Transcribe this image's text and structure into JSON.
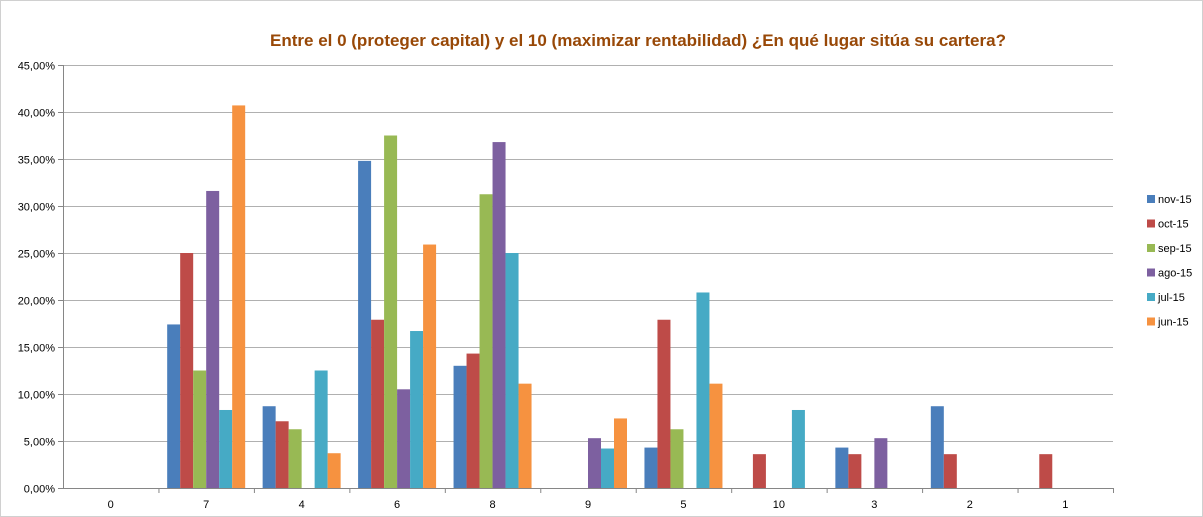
{
  "chart_data": {
    "type": "bar",
    "title": "Entre el 0 (proteger capital) y el 10 (maximizar rentabilidad)  ¿En qué lugar sitúa su cartera?",
    "xlabel": "",
    "ylabel": "",
    "ylim": [
      0,
      45
    ],
    "ytick_labels": [
      "0,00%",
      "5,00%",
      "10,00%",
      "15,00%",
      "20,00%",
      "25,00%",
      "30,00%",
      "35,00%",
      "40,00%",
      "45,00%"
    ],
    "grid": true,
    "legend_position": "right",
    "categories": [
      "0",
      "7",
      "4",
      "6",
      "8",
      "9",
      "5",
      "10",
      "3",
      "2",
      "1"
    ],
    "series": [
      {
        "name": "nov-15",
        "color": "#4a7ebb",
        "values": [
          0,
          17.4,
          8.7,
          34.8,
          13.0,
          0,
          4.3,
          0,
          4.3,
          8.7,
          0
        ]
      },
      {
        "name": "oct-15",
        "color": "#be4b48",
        "values": [
          0,
          25.0,
          7.1,
          17.9,
          14.3,
          0,
          17.9,
          3.6,
          3.6,
          3.6,
          3.6
        ]
      },
      {
        "name": "sep-15",
        "color": "#98b954",
        "values": [
          0,
          12.5,
          6.25,
          37.5,
          31.25,
          0,
          6.25,
          0,
          0,
          0,
          0
        ]
      },
      {
        "name": "ago-15",
        "color": "#7d60a0",
        "values": [
          0,
          31.6,
          0,
          10.5,
          36.8,
          5.3,
          0,
          0,
          5.3,
          0,
          0
        ]
      },
      {
        "name": "jul-15",
        "color": "#46aac5",
        "values": [
          0,
          8.3,
          12.5,
          16.7,
          25.0,
          4.2,
          20.8,
          8.3,
          0,
          0,
          0
        ]
      },
      {
        "name": "jun-15",
        "color": "#f69240",
        "values": [
          0,
          40.7,
          3.7,
          25.9,
          11.1,
          7.4,
          11.1,
          0,
          0,
          0,
          0
        ]
      }
    ],
    "title_color": "#984807"
  }
}
